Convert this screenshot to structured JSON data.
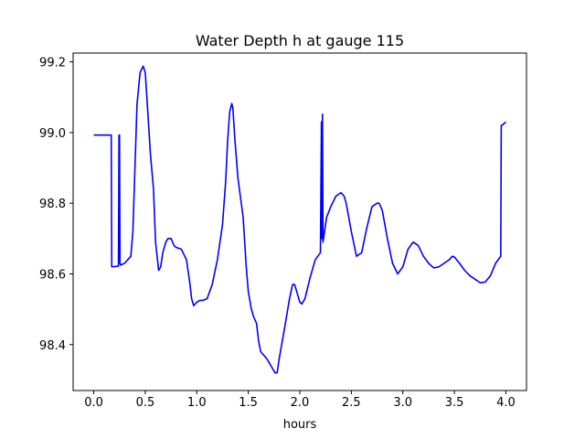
{
  "chart_data": {
    "type": "line",
    "title": "Water Depth h at gauge 115",
    "xlabel": "hours",
    "ylabel": "",
    "xlim": [
      -0.2,
      4.2
    ],
    "ylim": [
      98.27,
      99.225
    ],
    "x_ticks": [
      0.0,
      0.5,
      1.0,
      1.5,
      2.0,
      2.5,
      3.0,
      3.5,
      4.0
    ],
    "x_tick_labels": [
      "0.0",
      "0.5",
      "1.0",
      "1.5",
      "2.0",
      "2.5",
      "3.0",
      "3.5",
      "4.0"
    ],
    "y_ticks": [
      98.4,
      98.6,
      98.8,
      99.0,
      99.2
    ],
    "y_tick_labels": [
      "98.4",
      "98.6",
      "98.8",
      "99.0",
      "99.2"
    ],
    "grid": false,
    "series": [
      {
        "color": "#0000ff",
        "x": [
          0.0,
          0.17,
          0.175,
          0.24,
          0.245,
          0.25,
          0.255,
          0.26,
          0.3,
          0.36,
          0.38,
          0.4,
          0.42,
          0.45,
          0.48,
          0.5,
          0.52,
          0.55,
          0.58,
          0.6,
          0.63,
          0.65,
          0.67,
          0.7,
          0.72,
          0.75,
          0.78,
          0.8,
          0.85,
          0.9,
          0.93,
          0.95,
          0.97,
          1.0,
          1.03,
          1.06,
          1.1,
          1.15,
          1.2,
          1.25,
          1.28,
          1.3,
          1.32,
          1.34,
          1.35,
          1.37,
          1.4,
          1.45,
          1.48,
          1.5,
          1.53,
          1.55,
          1.58,
          1.6,
          1.62,
          1.65,
          1.68,
          1.7,
          1.73,
          1.76,
          1.78,
          1.8,
          1.83,
          1.86,
          1.9,
          1.93,
          1.95,
          1.97,
          2.0,
          2.02,
          2.05,
          2.1,
          2.15,
          2.2,
          2.21,
          2.215,
          2.22,
          2.225,
          2.23,
          2.26,
          2.3,
          2.35,
          2.4,
          2.43,
          2.45,
          2.5,
          2.55,
          2.6,
          2.65,
          2.7,
          2.75,
          2.77,
          2.8,
          2.85,
          2.9,
          2.95,
          3.0,
          3.05,
          3.1,
          3.15,
          3.2,
          3.25,
          3.3,
          3.35,
          3.4,
          3.45,
          3.48,
          3.5,
          3.55,
          3.6,
          3.65,
          3.7,
          3.75,
          3.8,
          3.85,
          3.9,
          3.95,
          3.955,
          3.96,
          4.0
        ],
        "y": [
          98.993,
          98.993,
          98.62,
          98.622,
          98.993,
          98.993,
          98.63,
          98.625,
          98.63,
          98.65,
          98.72,
          98.9,
          99.08,
          99.17,
          99.188,
          99.17,
          99.08,
          98.94,
          98.84,
          98.69,
          98.61,
          98.62,
          98.66,
          98.69,
          98.7,
          98.7,
          98.68,
          98.675,
          98.67,
          98.64,
          98.58,
          98.53,
          98.51,
          98.52,
          98.525,
          98.525,
          98.53,
          98.57,
          98.64,
          98.74,
          98.86,
          98.98,
          99.06,
          99.082,
          99.07,
          98.98,
          98.87,
          98.76,
          98.62,
          98.55,
          98.5,
          98.48,
          98.46,
          98.41,
          98.38,
          98.37,
          98.36,
          98.35,
          98.335,
          98.32,
          98.32,
          98.36,
          98.41,
          98.46,
          98.53,
          98.57,
          98.57,
          98.55,
          98.52,
          98.515,
          98.53,
          98.59,
          98.64,
          98.66,
          99.03,
          98.7,
          99.052,
          98.69,
          98.7,
          98.76,
          98.79,
          98.82,
          98.83,
          98.82,
          98.8,
          98.72,
          98.65,
          98.66,
          98.73,
          98.79,
          98.8,
          98.8,
          98.78,
          98.7,
          98.63,
          98.6,
          98.62,
          98.67,
          98.69,
          98.68,
          98.65,
          98.63,
          98.617,
          98.62,
          98.63,
          98.64,
          98.65,
          98.648,
          98.63,
          98.61,
          98.595,
          98.585,
          98.575,
          98.577,
          98.595,
          98.63,
          98.65,
          99.02,
          99.02,
          99.03
        ]
      }
    ]
  }
}
